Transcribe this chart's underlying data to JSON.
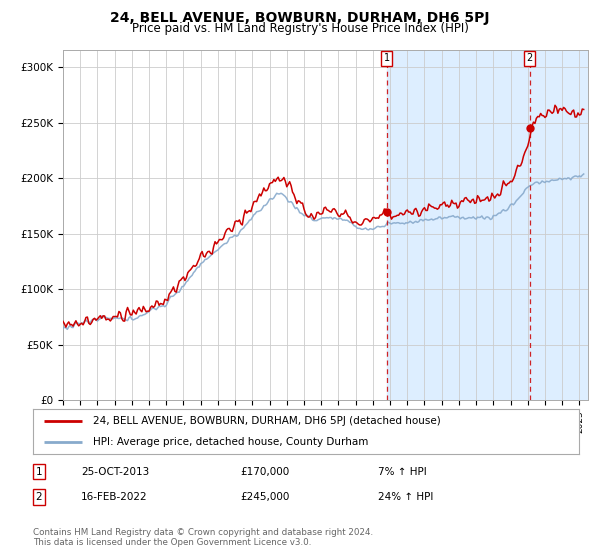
{
  "title": "24, BELL AVENUE, BOWBURN, DURHAM, DH6 5PJ",
  "subtitle": "Price paid vs. HM Land Registry's House Price Index (HPI)",
  "ylabel_ticks": [
    "£0",
    "£50K",
    "£100K",
    "£150K",
    "£200K",
    "£250K",
    "£300K"
  ],
  "ytick_values": [
    0,
    50000,
    100000,
    150000,
    200000,
    250000,
    300000
  ],
  "ylim": [
    0,
    315000
  ],
  "xlim_start": 1995.0,
  "xlim_end": 2025.5,
  "transaction1_date": 2013.82,
  "transaction1_price": 170000,
  "transaction1_label": "1",
  "transaction2_date": 2022.12,
  "transaction2_price": 245000,
  "transaction2_label": "2",
  "legend_line1": "24, BELL AVENUE, BOWBURN, DURHAM, DH6 5PJ (detached house)",
  "legend_line2": "HPI: Average price, detached house, County Durham",
  "table_row1_num": "1",
  "table_row1_date": "25-OCT-2013",
  "table_row1_price": "£170,000",
  "table_row1_hpi": "7% ↑ HPI",
  "table_row2_num": "2",
  "table_row2_date": "16-FEB-2022",
  "table_row2_price": "£245,000",
  "table_row2_hpi": "24% ↑ HPI",
  "footer": "Contains HM Land Registry data © Crown copyright and database right 2024.\nThis data is licensed under the Open Government Licence v3.0.",
  "red_line_color": "#cc0000",
  "blue_line_color": "#88aacc",
  "shade_color": "#ddeeff",
  "grid_color": "#cccccc",
  "bg_color": "#ffffff",
  "title_fontsize": 10,
  "subtitle_fontsize": 8.5
}
